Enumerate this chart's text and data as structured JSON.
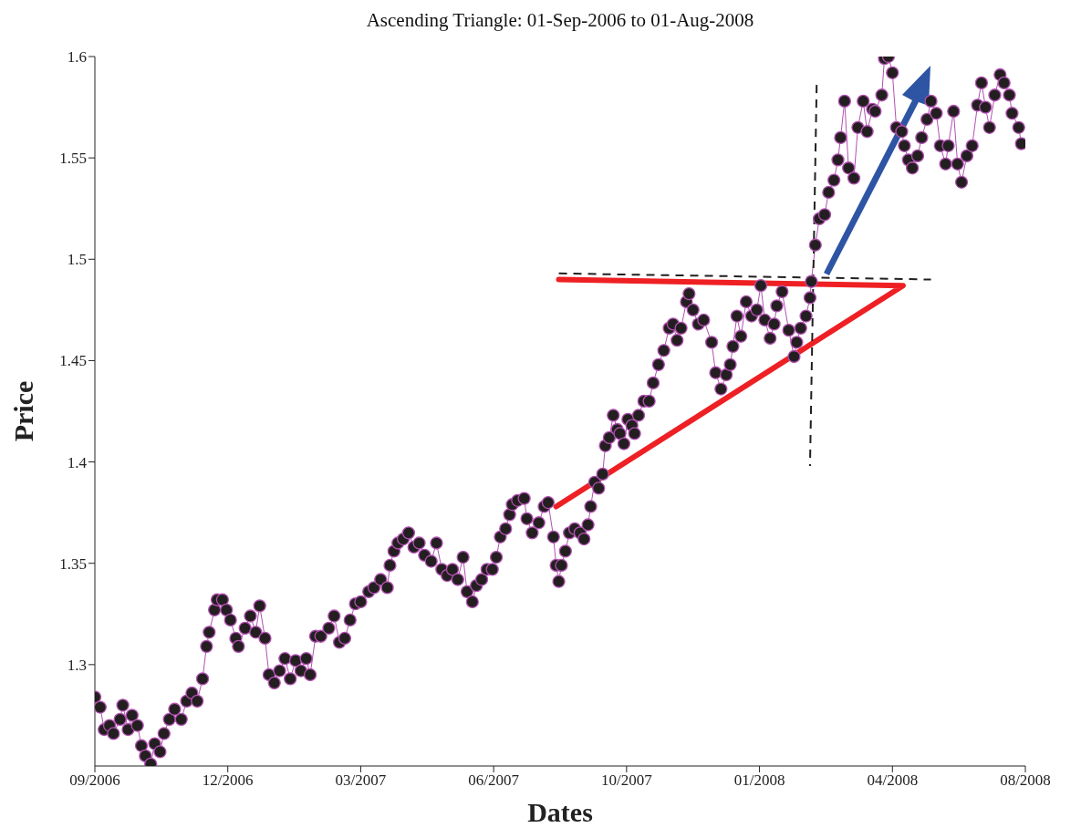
{
  "chart_data": {
    "type": "line",
    "title": "Ascending Triangle: 01-Sep-2006 to 01-Aug-2008",
    "xlabel": "Dates",
    "ylabel": "Price",
    "xlim": [
      "2006-09-01",
      "2008-08-01"
    ],
    "xticks": [
      {
        "value": "2006-09-01",
        "label": "09/2006"
      },
      {
        "value": "2006-12-10",
        "label": "12/2006"
      },
      {
        "value": "2007-03-20",
        "label": "03/2007"
      },
      {
        "value": "2007-06-28",
        "label": "06/2007"
      },
      {
        "value": "2007-10-06",
        "label": "10/2007"
      },
      {
        "value": "2008-01-14",
        "label": "01/2008"
      },
      {
        "value": "2008-04-23",
        "label": "04/2008"
      },
      {
        "value": "2008-08-01",
        "label": "08/2008"
      }
    ],
    "ylim": [
      1.25,
      1.6
    ],
    "yticks": [
      1.3,
      1.35,
      1.4,
      1.45,
      1.5,
      1.55,
      1.6
    ],
    "grid": false,
    "series": [
      {
        "color": "#231f20",
        "marker": "circle",
        "line_style": "solid",
        "x": [
          "2006-09-01",
          "2006-09-05",
          "2006-09-08",
          "2006-09-12",
          "2006-09-15",
          "2006-09-20",
          "2006-09-22",
          "2006-09-26",
          "2006-09-29",
          "2006-10-03",
          "2006-10-06",
          "2006-10-09",
          "2006-10-13",
          "2006-10-16",
          "2006-10-20",
          "2006-10-23",
          "2006-10-27",
          "2006-10-31",
          "2006-11-05",
          "2006-11-09",
          "2006-11-13",
          "2006-11-17",
          "2006-11-21",
          "2006-11-24",
          "2006-11-26",
          "2006-11-30",
          "2006-12-02",
          "2006-12-06",
          "2006-12-09",
          "2006-12-12",
          "2006-12-16",
          "2006-12-18",
          "2006-12-23",
          "2006-12-27",
          "2006-12-31",
          "2007-01-03",
          "2007-01-07",
          "2007-01-10",
          "2007-01-14",
          "2007-01-18",
          "2007-01-22",
          "2007-01-26",
          "2007-01-30",
          "2007-02-03",
          "2007-02-07",
          "2007-02-10",
          "2007-02-14",
          "2007-02-18",
          "2007-02-24",
          "2007-02-28",
          "2007-03-04",
          "2007-03-08",
          "2007-03-12",
          "2007-03-16",
          "2007-03-20",
          "2007-03-26",
          "2007-03-30",
          "2007-04-04",
          "2007-04-09",
          "2007-04-11",
          "2007-04-14",
          "2007-04-17",
          "2007-04-21",
          "2007-04-25",
          "2007-04-29",
          "2007-05-03",
          "2007-05-07",
          "2007-05-12",
          "2007-05-16",
          "2007-05-20",
          "2007-05-24",
          "2007-05-28",
          "2007-06-01",
          "2007-06-05",
          "2007-06-08",
          "2007-06-12",
          "2007-06-15",
          "2007-06-19",
          "2007-06-23",
          "2007-06-27",
          "2007-06-30",
          "2007-07-03",
          "2007-07-07",
          "2007-07-10",
          "2007-07-12",
          "2007-07-16",
          "2007-07-21",
          "2007-07-23",
          "2007-07-27",
          "2007-08-01",
          "2007-08-05",
          "2007-08-08",
          "2007-08-12",
          "2007-08-14",
          "2007-08-16",
          "2007-08-18",
          "2007-08-21",
          "2007-08-24",
          "2007-08-28",
          "2007-09-01",
          "2007-09-04",
          "2007-09-07",
          "2007-09-09",
          "2007-09-12",
          "2007-09-15",
          "2007-09-18",
          "2007-09-20",
          "2007-09-23",
          "2007-09-26",
          "2007-09-29",
          "2007-10-01",
          "2007-10-04",
          "2007-10-07",
          "2007-10-10",
          "2007-10-12",
          "2007-10-15",
          "2007-10-19",
          "2007-10-23",
          "2007-10-26",
          "2007-10-30",
          "2007-11-03",
          "2007-11-07",
          "2007-11-10",
          "2007-11-13",
          "2007-11-16",
          "2007-11-20",
          "2007-11-22",
          "2007-11-25",
          "2007-11-29",
          "2007-12-03",
          "2007-12-09",
          "2007-12-12",
          "2007-12-16",
          "2007-12-20",
          "2007-12-23",
          "2007-12-25",
          "2007-12-28",
          "2007-12-31",
          "2008-01-04",
          "2008-01-08",
          "2008-01-12",
          "2008-01-15",
          "2008-01-18",
          "2008-01-22",
          "2008-01-25",
          "2008-01-27",
          "2008-01-31",
          "2008-02-05",
          "2008-02-09",
          "2008-02-11",
          "2008-02-14",
          "2008-02-18",
          "2008-02-21",
          "2008-02-22",
          "2008-02-25",
          "2008-02-28",
          "2008-03-03",
          "2008-03-06",
          "2008-03-10",
          "2008-03-13",
          "2008-03-15",
          "2008-03-18",
          "2008-03-21",
          "2008-03-25",
          "2008-03-28",
          "2008-04-01",
          "2008-04-04",
          "2008-04-08",
          "2008-04-10",
          "2008-04-15",
          "2008-04-17",
          "2008-04-20",
          "2008-04-23",
          "2008-04-26",
          "2008-04-30",
          "2008-05-02",
          "2008-05-05",
          "2008-05-08",
          "2008-05-12",
          "2008-05-15",
          "2008-05-19",
          "2008-05-22",
          "2008-05-26",
          "2008-05-29",
          "2008-06-02",
          "2008-06-04",
          "2008-06-08",
          "2008-06-11",
          "2008-06-14",
          "2008-06-18",
          "2008-06-22",
          "2008-06-26",
          "2008-06-29",
          "2008-07-02",
          "2008-07-05",
          "2008-07-09",
          "2008-07-13",
          "2008-07-16",
          "2008-07-20",
          "2008-07-22",
          "2008-07-27",
          "2008-07-29"
        ],
        "values": [
          1.284,
          1.279,
          1.268,
          1.27,
          1.266,
          1.273,
          1.28,
          1.268,
          1.275,
          1.27,
          1.26,
          1.255,
          1.251,
          1.261,
          1.257,
          1.266,
          1.273,
          1.278,
          1.273,
          1.282,
          1.286,
          1.282,
          1.293,
          1.309,
          1.316,
          1.327,
          1.332,
          1.332,
          1.327,
          1.322,
          1.313,
          1.309,
          1.318,
          1.324,
          1.316,
          1.329,
          1.313,
          1.295,
          1.291,
          1.297,
          1.303,
          1.293,
          1.302,
          1.297,
          1.303,
          1.295,
          1.314,
          1.314,
          1.318,
          1.324,
          1.311,
          1.313,
          1.322,
          1.33,
          1.331,
          1.336,
          1.338,
          1.342,
          1.338,
          1.349,
          1.356,
          1.36,
          1.362,
          1.365,
          1.358,
          1.36,
          1.354,
          1.351,
          1.36,
          1.347,
          1.344,
          1.347,
          1.342,
          1.353,
          1.336,
          1.331,
          1.339,
          1.342,
          1.347,
          1.347,
          1.353,
          1.363,
          1.367,
          1.374,
          1.379,
          1.381,
          1.382,
          1.372,
          1.365,
          1.37,
          1.378,
          1.38,
          1.363,
          1.349,
          1.341,
          1.349,
          1.356,
          1.365,
          1.367,
          1.365,
          1.362,
          1.369,
          1.378,
          1.39,
          1.387,
          1.394,
          1.408,
          1.412,
          1.423,
          1.416,
          1.414,
          1.409,
          1.421,
          1.418,
          1.414,
          1.423,
          1.43,
          1.43,
          1.439,
          1.448,
          1.455,
          1.466,
          1.468,
          1.46,
          1.466,
          1.479,
          1.483,
          1.475,
          1.468,
          1.47,
          1.459,
          1.444,
          1.436,
          1.443,
          1.448,
          1.457,
          1.472,
          1.462,
          1.479,
          1.472,
          1.475,
          1.487,
          1.47,
          1.461,
          1.468,
          1.477,
          1.484,
          1.465,
          1.452,
          1.459,
          1.466,
          1.472,
          1.481,
          1.489,
          1.507,
          1.52,
          1.522,
          1.533,
          1.539,
          1.549,
          1.56,
          1.578,
          1.545,
          1.54,
          1.565,
          1.578,
          1.563,
          1.574,
          1.573,
          1.581,
          1.599,
          1.6,
          1.592,
          1.565,
          1.563,
          1.556,
          1.549,
          1.545,
          1.551,
          1.56,
          1.569,
          1.578,
          1.572,
          1.556,
          1.547,
          1.556,
          1.573,
          1.547,
          1.538,
          1.551,
          1.556,
          1.576,
          1.587,
          1.575,
          1.565,
          1.581,
          1.591,
          1.587,
          1.581,
          1.572,
          1.565,
          1.557
        ]
      },
      {
        "color": "#ee2024",
        "marker": "none",
        "line_style": "solid",
        "x": [
          "2007-08-16",
          "2008-05-01",
          "2007-08-14"
        ],
        "values": [
          1.49,
          1.487,
          1.378
        ]
      },
      {
        "color": "#231f20",
        "marker": "none",
        "line_style": "dashed",
        "x": [
          "2007-08-16",
          "2008-05-22"
        ],
        "values": [
          1.493,
          1.49
        ]
      },
      {
        "color": "#231f20",
        "marker": "none",
        "line_style": "dashed",
        "x": [
          "2008-02-26",
          "2008-02-21"
        ],
        "values": [
          1.586,
          1.398
        ]
      }
    ]
  }
}
